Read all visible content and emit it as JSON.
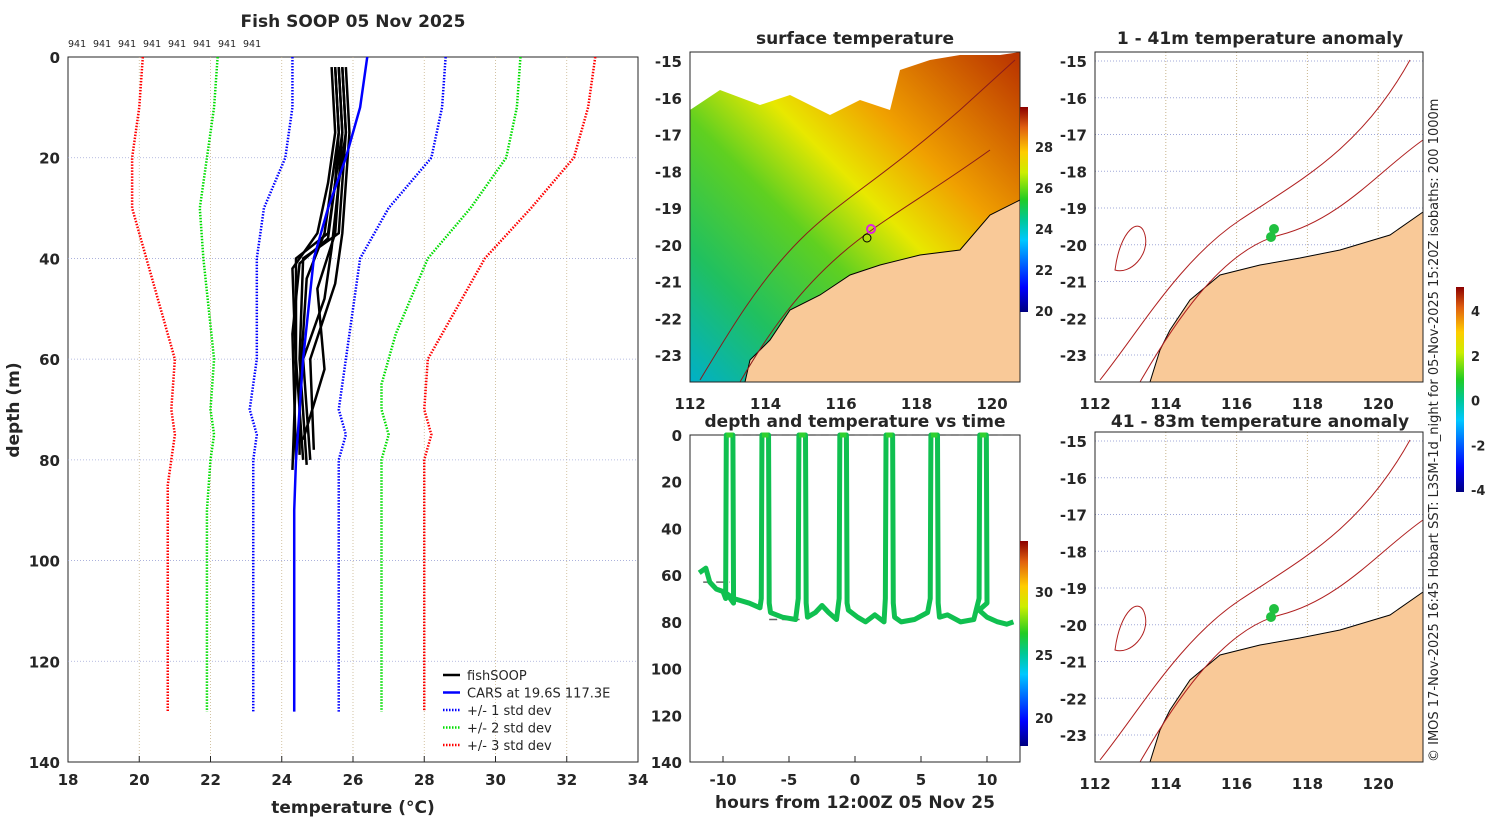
{
  "chart_data": [
    {
      "type": "line",
      "title": "Fish SOOP 05 Nov 2025",
      "xlabel": "temperature (°C)",
      "ylabel": "depth (m)",
      "xlim": [
        18,
        34
      ],
      "ylim": [
        0,
        140
      ],
      "xticks": [
        18,
        20,
        22,
        24,
        26,
        28,
        30,
        32,
        34
      ],
      "yticks": [
        0,
        20,
        40,
        60,
        80,
        100,
        120,
        140
      ],
      "top_labels": [
        "941",
        "941",
        "941",
        "941",
        "941",
        "941",
        "941",
        "941"
      ],
      "grid": true,
      "legend_position": "bottom-right",
      "legend": [
        "fishSOOP",
        "CARS at 19.6S 117.3E",
        "+/- 1 std dev",
        "+/- 2 std dev",
        "+/- 3 std dev"
      ],
      "colors": {
        "fish": "#000000",
        "cars": "#0000ff",
        "std1": "#0000ff",
        "std2": "#00dd00",
        "std3": "#ff0000"
      },
      "cars": [
        [
          26.4,
          0
        ],
        [
          26.2,
          10
        ],
        [
          25.8,
          20
        ],
        [
          25.3,
          30
        ],
        [
          24.9,
          40
        ],
        [
          24.6,
          60
        ],
        [
          24.4,
          80
        ],
        [
          24.35,
          90
        ],
        [
          24.35,
          130
        ]
      ],
      "std_lines": [
        {
          "level": 1,
          "side": "low",
          "points": [
            [
              24.3,
              0
            ],
            [
              24.3,
              10
            ],
            [
              24.1,
              20
            ],
            [
              23.5,
              30
            ],
            [
              23.3,
              40
            ],
            [
              23.3,
              60
            ],
            [
              23.1,
              70
            ],
            [
              23.3,
              75
            ],
            [
              23.2,
              80
            ],
            [
              23.2,
              130
            ]
          ]
        },
        {
          "level": 1,
          "side": "high",
          "points": [
            [
              28.6,
              0
            ],
            [
              28.5,
              10
            ],
            [
              28.2,
              20
            ],
            [
              27.0,
              30
            ],
            [
              26.2,
              40
            ],
            [
              25.9,
              55
            ],
            [
              25.6,
              70
            ],
            [
              25.8,
              75
            ],
            [
              25.6,
              80
            ],
            [
              25.6,
              130
            ]
          ]
        },
        {
          "level": 2,
          "side": "low",
          "points": [
            [
              22.2,
              0
            ],
            [
              22.1,
              10
            ],
            [
              21.9,
              20
            ],
            [
              21.7,
              30
            ],
            [
              21.8,
              40
            ],
            [
              22.1,
              60
            ],
            [
              22.0,
              70
            ],
            [
              22.1,
              75
            ],
            [
              22.0,
              80
            ],
            [
              21.9,
              90
            ],
            [
              21.9,
              130
            ]
          ]
        },
        {
          "level": 2,
          "side": "high",
          "points": [
            [
              30.7,
              0
            ],
            [
              30.6,
              10
            ],
            [
              30.3,
              20
            ],
            [
              29.3,
              30
            ],
            [
              28.1,
              40
            ],
            [
              27.2,
              55
            ],
            [
              26.8,
              65
            ],
            [
              26.8,
              70
            ],
            [
              27.0,
              75
            ],
            [
              26.8,
              80
            ],
            [
              26.8,
              130
            ]
          ]
        },
        {
          "level": 3,
          "side": "low",
          "points": [
            [
              20.1,
              0
            ],
            [
              20.0,
              10
            ],
            [
              19.8,
              20
            ],
            [
              19.8,
              30
            ],
            [
              20.4,
              45
            ],
            [
              21.0,
              60
            ],
            [
              20.9,
              70
            ],
            [
              21.0,
              75
            ],
            [
              20.8,
              85
            ],
            [
              20.8,
              130
            ]
          ]
        },
        {
          "level": 3,
          "side": "high",
          "points": [
            [
              32.8,
              0
            ],
            [
              32.6,
              10
            ],
            [
              32.2,
              20
            ],
            [
              31.0,
              30
            ],
            [
              29.7,
              40
            ],
            [
              28.5,
              55
            ],
            [
              28.1,
              60
            ],
            [
              28.0,
              70
            ],
            [
              28.2,
              75
            ],
            [
              28.0,
              80
            ],
            [
              28.0,
              130
            ]
          ]
        }
      ],
      "fish_profiles": [
        [
          [
            25.5,
            2
          ],
          [
            25.6,
            15
          ],
          [
            25.5,
            25
          ],
          [
            25.3,
            35
          ],
          [
            24.4,
            40
          ],
          [
            24.4,
            60
          ],
          [
            24.6,
            80
          ]
        ],
        [
          [
            25.7,
            2
          ],
          [
            25.8,
            15
          ],
          [
            25.7,
            25
          ],
          [
            25.6,
            35
          ],
          [
            24.6,
            40
          ],
          [
            24.5,
            60
          ],
          [
            24.7,
            81
          ]
        ],
        [
          [
            25.4,
            2
          ],
          [
            25.5,
            15
          ],
          [
            25.3,
            25
          ],
          [
            25.0,
            35
          ],
          [
            24.3,
            42
          ],
          [
            24.4,
            62
          ],
          [
            24.3,
            82
          ]
        ],
        [
          [
            25.8,
            2
          ],
          [
            25.9,
            15
          ],
          [
            25.8,
            25
          ],
          [
            25.7,
            35
          ],
          [
            25.5,
            45
          ],
          [
            24.8,
            60
          ],
          [
            24.9,
            78
          ]
        ],
        [
          [
            25.6,
            2
          ],
          [
            25.7,
            15
          ],
          [
            25.6,
            25
          ],
          [
            25.4,
            38
          ],
          [
            25.2,
            48
          ],
          [
            24.6,
            60
          ],
          [
            24.8,
            80
          ]
        ],
        [
          [
            25.5,
            2
          ],
          [
            25.6,
            15
          ],
          [
            25.4,
            25
          ],
          [
            25.2,
            35
          ],
          [
            24.7,
            44
          ],
          [
            24.5,
            66
          ],
          [
            24.5,
            79
          ]
        ],
        [
          [
            25.7,
            2
          ],
          [
            25.8,
            15
          ],
          [
            25.6,
            25
          ],
          [
            25.5,
            35
          ],
          [
            25.0,
            46
          ],
          [
            25.2,
            62
          ],
          [
            24.6,
            76
          ]
        ],
        [
          [
            25.6,
            2
          ],
          [
            25.7,
            15
          ],
          [
            25.5,
            25
          ],
          [
            25.3,
            36
          ],
          [
            24.5,
            41
          ],
          [
            24.3,
            55
          ],
          [
            24.4,
            80
          ]
        ]
      ]
    },
    {
      "type": "heatmap",
      "title": "surface temperature",
      "xticks": [
        112,
        114,
        116,
        118,
        120
      ],
      "yticks": [
        -15,
        -16,
        -17,
        -18,
        -19,
        -20,
        -21,
        -22,
        -23
      ],
      "colorbar_ticks": [
        20,
        22,
        24,
        26,
        28
      ],
      "clim": [
        19.8,
        29.8
      ]
    },
    {
      "type": "scatter",
      "title": "depth and temperature vs time",
      "xlabel": "hours from 12:00Z 05 Nov 25",
      "xlim": [
        -12.5,
        12.5
      ],
      "ylim": [
        0,
        140
      ],
      "xticks": [
        -10,
        -5,
        0,
        5,
        10
      ],
      "yticks": [
        0,
        20,
        40,
        60,
        80,
        100,
        120,
        140
      ],
      "colorbar_ticks": [
        20,
        25,
        30
      ],
      "clim": [
        17.5,
        33.8
      ],
      "surface_hours": [
        -9.5,
        -6.8,
        -4.0,
        -0.9,
        2.6,
        6.0,
        9.7
      ],
      "bottom_track": [
        [
          -11.8,
          59
        ],
        [
          -11.3,
          57
        ],
        [
          -11,
          63
        ],
        [
          -10.5,
          66
        ],
        [
          -10,
          67
        ],
        [
          -9.7,
          68
        ],
        [
          -9.2,
          70
        ],
        [
          -8,
          72
        ],
        [
          -7.2,
          74
        ],
        [
          -6.4,
          76
        ],
        [
          -5.5,
          78
        ],
        [
          -4.5,
          79
        ],
        [
          -3.6,
          78
        ],
        [
          -3,
          76
        ],
        [
          -2.5,
          73
        ],
        [
          -2,
          76
        ],
        [
          -1.4,
          79
        ],
        [
          -0.5,
          75
        ],
        [
          0.2,
          78
        ],
        [
          0.8,
          80
        ],
        [
          1.5,
          77
        ],
        [
          2.2,
          80
        ],
        [
          3,
          78
        ],
        [
          3.5,
          80
        ],
        [
          4.5,
          79
        ],
        [
          5.5,
          76
        ],
        [
          6.4,
          78
        ],
        [
          7,
          77
        ],
        [
          8,
          80
        ],
        [
          9,
          79
        ],
        [
          9.4,
          75
        ],
        [
          10,
          78
        ],
        [
          10.8,
          80
        ],
        [
          11.5,
          81
        ],
        [
          12,
          80
        ]
      ],
      "dashed_refs": [
        [
          -11.5,
          63,
          -9.5
        ],
        [
          -6.5,
          79,
          -4.2
        ]
      ]
    },
    {
      "type": "heatmap",
      "title": "1 - 41m temperature anomaly",
      "xticks": [
        112,
        114,
        116,
        118,
        120
      ],
      "yticks": [
        -15,
        -16,
        -17,
        -18,
        -19,
        -20,
        -21,
        -22,
        -23
      ]
    },
    {
      "type": "heatmap",
      "title": "41 - 83m temperature anomaly",
      "xticks": [
        112,
        114,
        116,
        118,
        120
      ],
      "yticks": [
        -15,
        -16,
        -17,
        -18,
        -19,
        -20,
        -21,
        -22,
        -23
      ],
      "colorbar_ticks": [
        -4,
        -2,
        0,
        2,
        4
      ]
    }
  ],
  "credit": "© IMOS 17-Nov-2025 16:45 Hobart SST: L3SM-1d_night for 05-Nov-2025 15:20Z isobaths: 200  1000m"
}
